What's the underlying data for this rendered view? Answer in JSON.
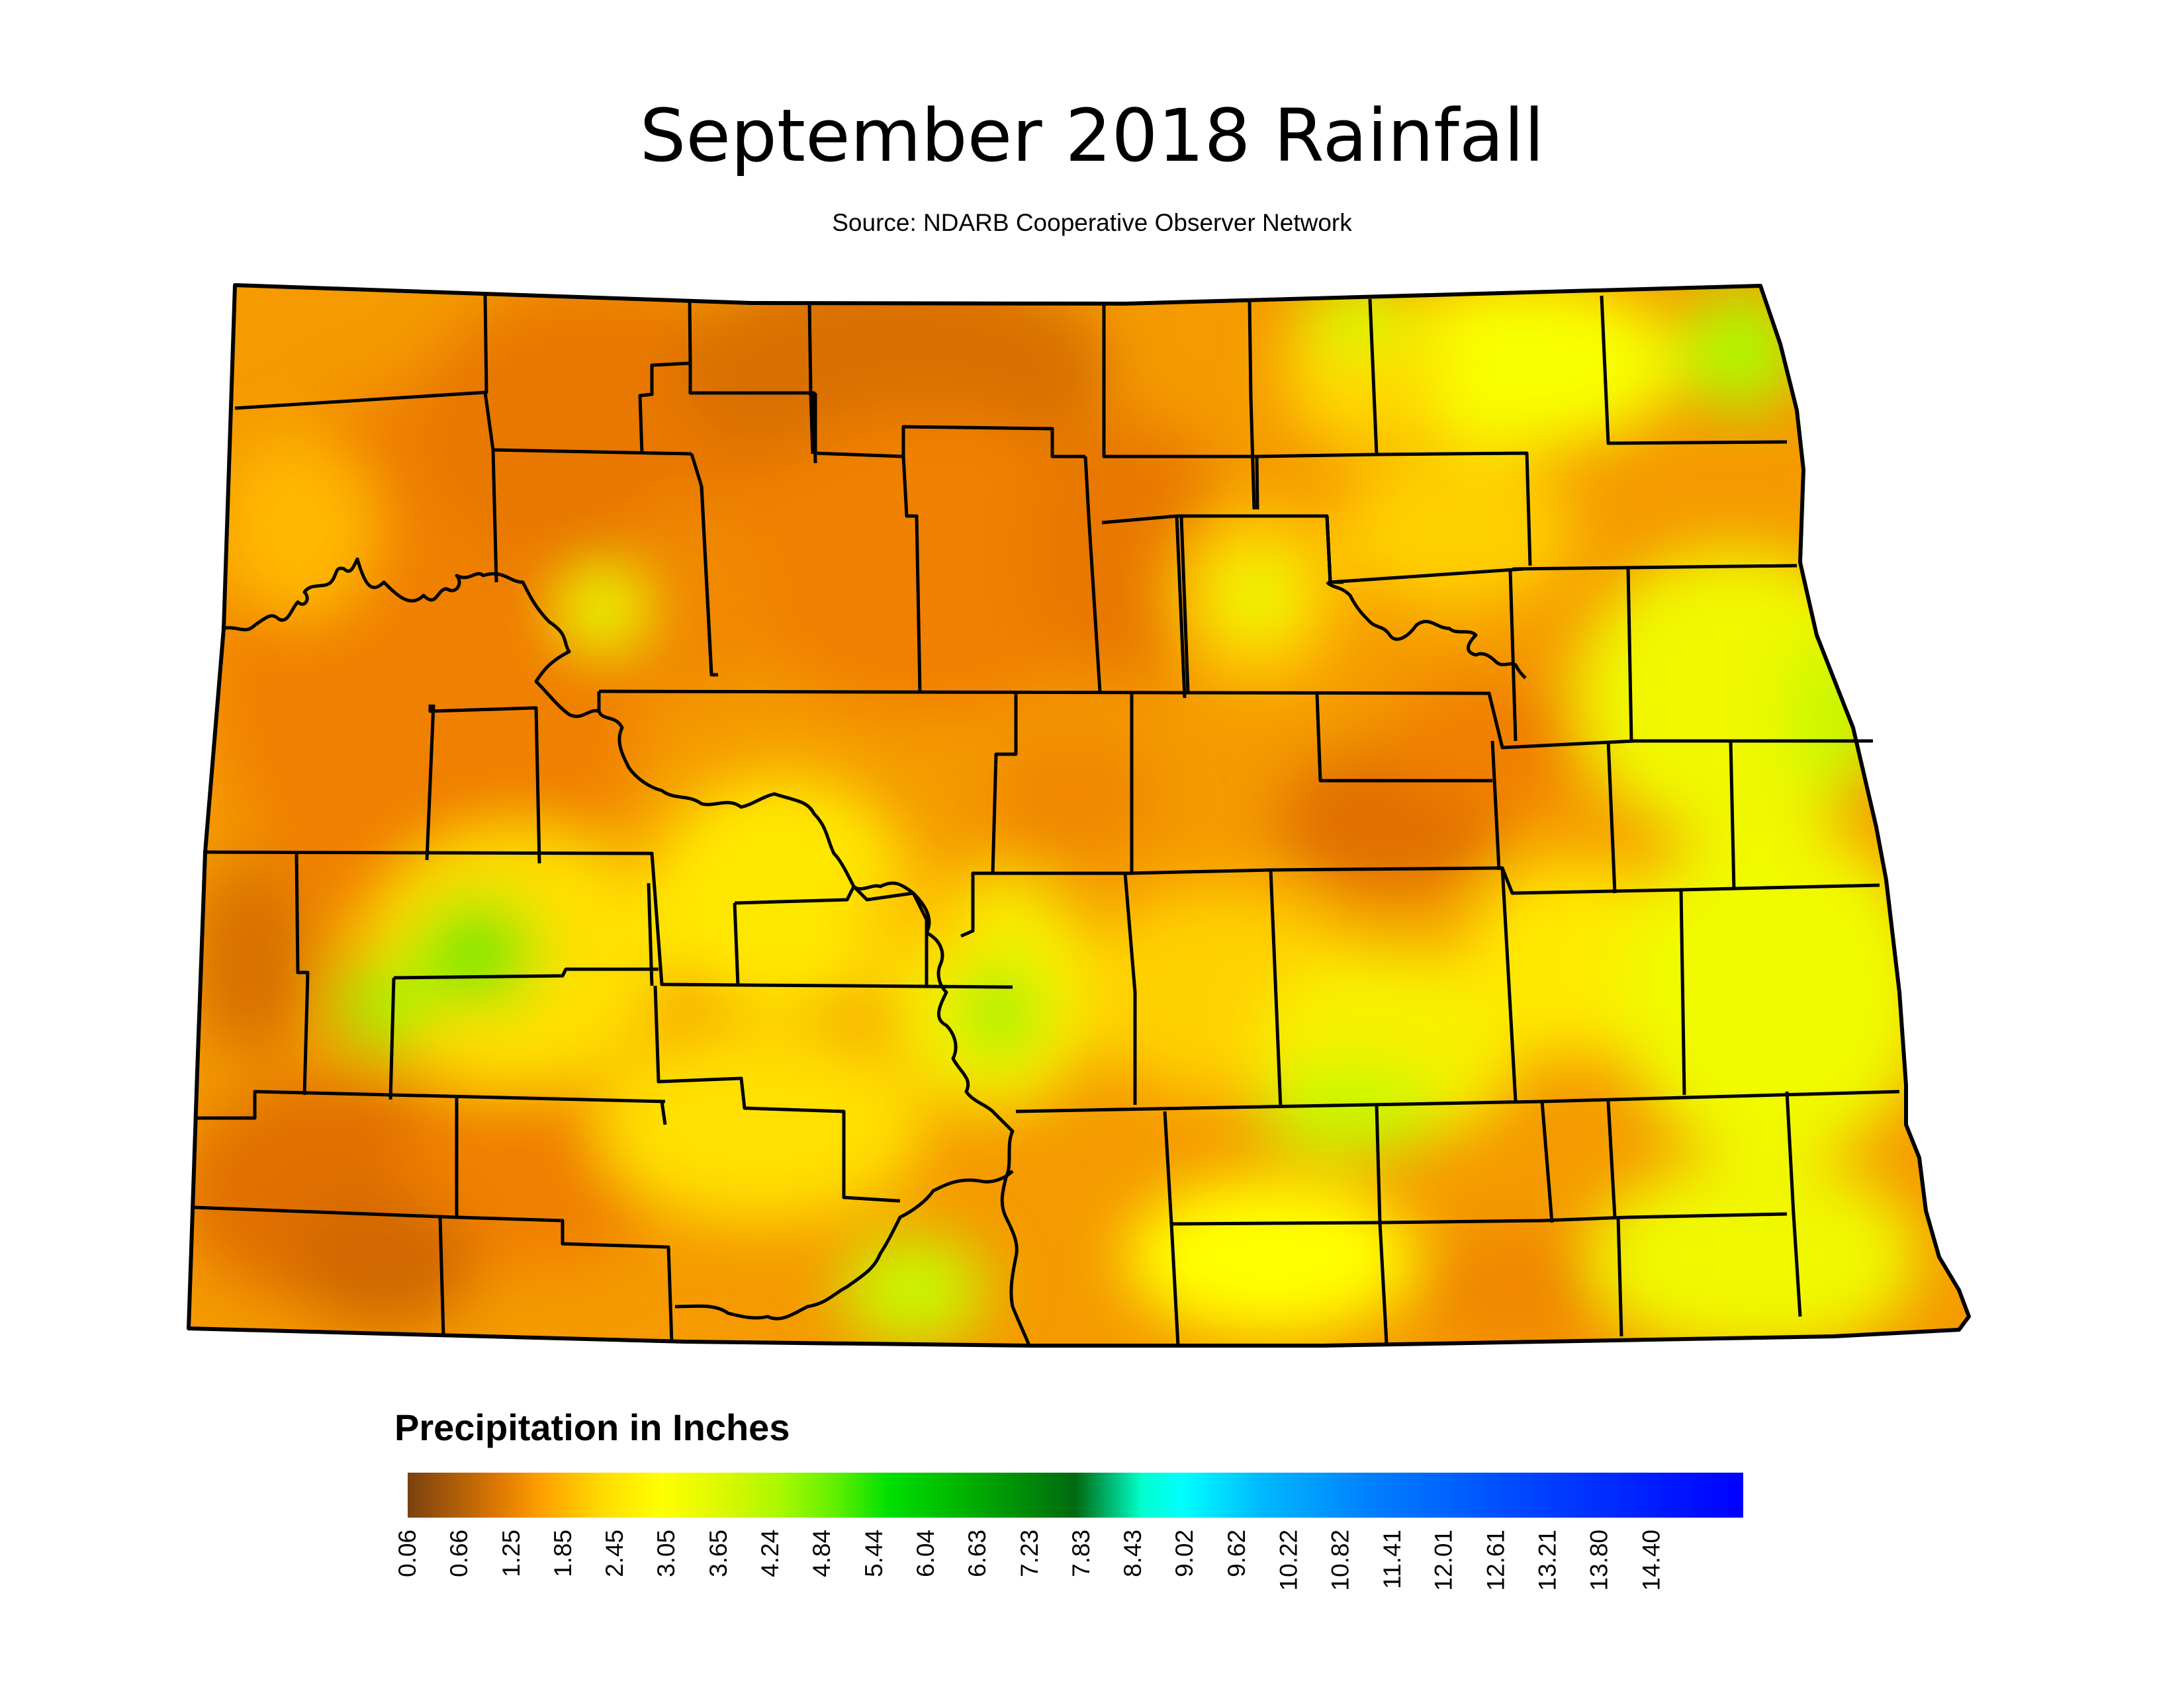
{
  "title": "September 2018 Rainfall",
  "subtitle": "Source: NDARB Cooperative Observer Network",
  "legend": {
    "title": "Precipitation in Inches",
    "ticks": [
      "0.06",
      "0.66",
      "1.25",
      "1.85",
      "2.45",
      "3.05",
      "3.65",
      "4.24",
      "4.84",
      "5.44",
      "6.04",
      "6.63",
      "7.23",
      "7.83",
      "8.43",
      "9.02",
      "9.62",
      "10.22",
      "10.82",
      "11.41",
      "12.01",
      "12.61",
      "13.21",
      "13.80",
      "14.40"
    ],
    "colors": [
      "#7a4010",
      "#e07a00",
      "#ffa000",
      "#ffe000",
      "#ffff00",
      "#d8f800",
      "#a8f800",
      "#60f000",
      "#00e000",
      "#00b800",
      "#008000",
      "#00ffff",
      "#0090ff",
      "#0050ff",
      "#0000ff"
    ]
  },
  "map": {
    "region": "North Dakota",
    "fill_colors": {
      "dark_dry": "#c86a00",
      "dry": "#f28a00",
      "medium": "#ffb000",
      "moderate": "#ffe000",
      "wet": "#eaff00",
      "wettest": "#90f000"
    }
  }
}
